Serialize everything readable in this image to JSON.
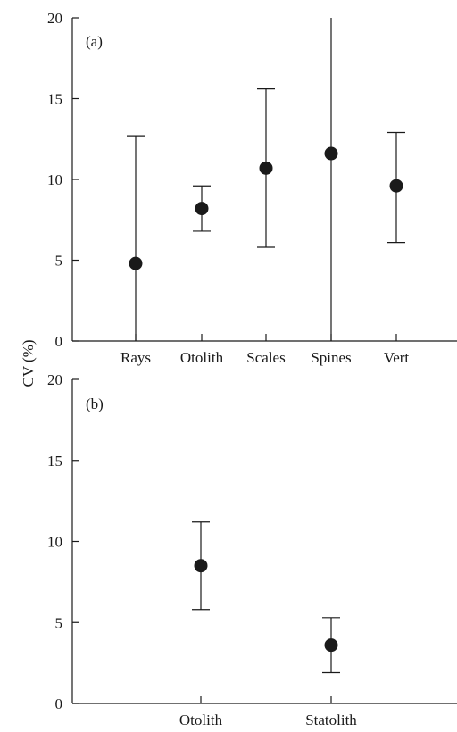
{
  "figure": {
    "ylabel": "CV (%)"
  },
  "chart_data": [
    {
      "type": "scatter",
      "panel_tag": "(a)",
      "categories": [
        "Rays",
        "Otolith",
        "Scales",
        "Spines",
        "Vert"
      ],
      "values": [
        4.8,
        8.2,
        10.7,
        11.6,
        9.6
      ],
      "error_low": [
        0,
        6.8,
        5.8,
        0,
        6.1
      ],
      "error_high": [
        12.7,
        9.6,
        15.6,
        20,
        12.9
      ],
      "ylim": [
        0,
        20
      ],
      "yticks": [
        0,
        5,
        10,
        15,
        20
      ],
      "grid": false
    },
    {
      "type": "scatter",
      "panel_tag": "(b)",
      "categories": [
        "Otolith",
        "Statolith"
      ],
      "values": [
        8.5,
        3.6
      ],
      "error_low": [
        5.8,
        1.9
      ],
      "error_high": [
        11.2,
        5.3
      ],
      "ylim": [
        0,
        20
      ],
      "yticks": [
        0,
        5,
        10,
        15,
        20
      ],
      "grid": false
    }
  ]
}
